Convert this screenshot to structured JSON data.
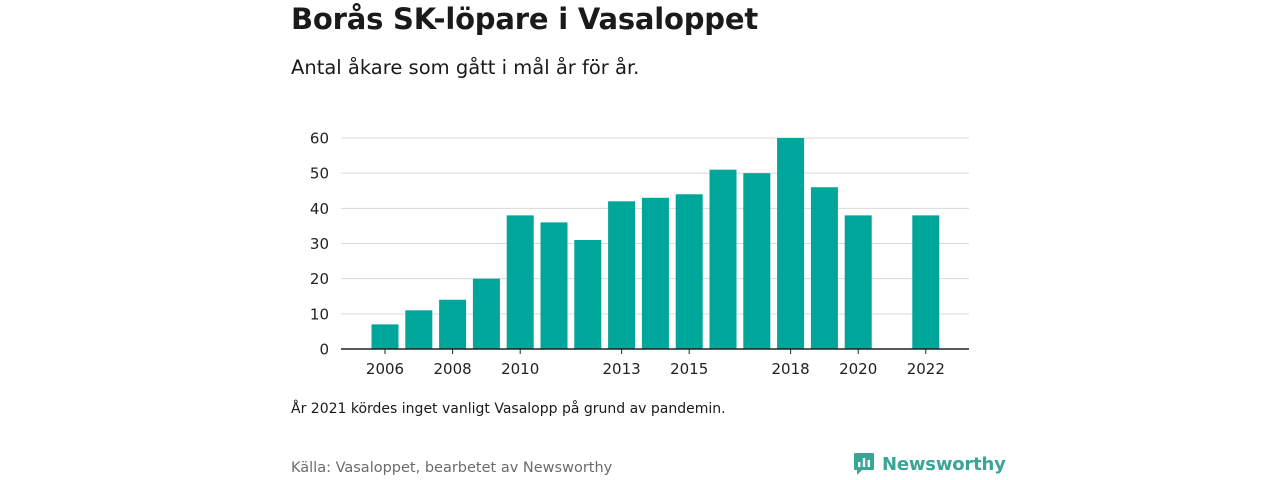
{
  "header": {
    "title": "Borås SK-löpare i Vasaloppet",
    "subtitle": "Antal åkare som gått i mål år för år."
  },
  "footer": {
    "note": "År 2021 kördes inget vanligt Vasalopp på grund av pandemin.",
    "source": "Källa: Vasaloppet, bearbetet av Newsworthy",
    "logo_text": "Newsworthy"
  },
  "colors": {
    "bar": "#00a699",
    "logo": "#3aa497",
    "grid": "#d9d9d9",
    "axis": "#222222"
  },
  "chart_data": {
    "type": "bar",
    "x": [
      2006,
      2007,
      2008,
      2009,
      2010,
      2011,
      2012,
      2013,
      2014,
      2015,
      2016,
      2017,
      2018,
      2019,
      2020,
      2021,
      2022
    ],
    "values": [
      7,
      11,
      14,
      20,
      38,
      36,
      31,
      42,
      43,
      44,
      51,
      50,
      60,
      46,
      38,
      null,
      38
    ],
    "title": "Borås SK-löpare i Vasaloppet",
    "subtitle": "Antal åkare som gått i mål år för år.",
    "ylim": [
      0,
      60
    ],
    "y_ticks": [
      0,
      10,
      20,
      30,
      40,
      50,
      60
    ],
    "x_tick_labels": [
      "2006",
      "2008",
      "2010",
      "2013",
      "2015",
      "2018",
      "2020",
      "2022"
    ],
    "grid": true
  }
}
